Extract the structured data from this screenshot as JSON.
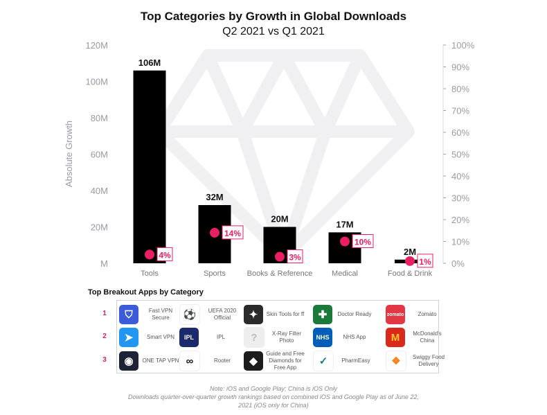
{
  "chart_data": {
    "type": "bar",
    "title": "Top Categories by Growth in Global Downloads",
    "subtitle": "Q2 2021 vs Q1 2021",
    "ylabel": "Absolute Growth",
    "categories": [
      "Tools",
      "Sports",
      "Books & Reference",
      "Medical",
      "Food & Drink"
    ],
    "values": [
      106,
      32,
      20,
      17,
      2
    ],
    "value_labels": [
      "106M",
      "32M",
      "20M",
      "17M",
      "2M"
    ],
    "ylim": [
      0,
      120
    ],
    "y_ticks": [
      "M",
      "20M",
      "40M",
      "60M",
      "80M",
      "100M",
      "120M"
    ],
    "secondary_series": {
      "values": [
        4,
        14,
        3,
        10,
        1
      ],
      "labels": [
        "4%",
        "14%",
        "3%",
        "10%",
        "1%"
      ],
      "ylim": [
        0,
        100
      ],
      "ticks": [
        "0%",
        "10%",
        "20%",
        "30%",
        "40%",
        "50%",
        "60%",
        "70%",
        "80%",
        "90%",
        "100%"
      ]
    },
    "colors": {
      "bar": "#000000",
      "dot": "#e91e63",
      "axis_text": "#9a9aa6",
      "grid": "#e6e6ea"
    },
    "grid": true
  },
  "breakout": {
    "title": "Top Breakout Apps by Category",
    "ranks": [
      "1",
      "2",
      "3"
    ],
    "rows": [
      [
        {
          "name": "Fast VPN Secure",
          "icon": "shield-icon",
          "color": "#3b5bdb",
          "glyph": "⛉"
        },
        {
          "name": "UEFA 2020 Official",
          "icon": "uefa-icon",
          "color": "#ffffff",
          "glyph": "⚽"
        },
        {
          "name": "Skin Tools for ff",
          "icon": "ff-icon",
          "color": "#2b2b2b",
          "glyph": "✦"
        },
        {
          "name": "Doctor Ready",
          "icon": "doctor-icon",
          "color": "#1b7a3a",
          "glyph": "✚"
        },
        {
          "name": "Zomato",
          "icon": "zomato-icon",
          "color": "#e23744",
          "glyph": "zomato"
        }
      ],
      [
        {
          "name": "Smart VPN",
          "icon": "paper-plane-icon",
          "color": "#2196f3",
          "glyph": "➤"
        },
        {
          "name": "IPL",
          "icon": "ipl-icon",
          "color": "#1a2a6c",
          "glyph": "IPL"
        },
        {
          "name": "X-Ray Filter Photo",
          "icon": "question-icon",
          "color": "#eeeeee",
          "glyph": "?"
        },
        {
          "name": "NHS App",
          "icon": "nhs-icon",
          "color": "#005eb8",
          "glyph": "NHS"
        },
        {
          "name": "McDonald's China",
          "icon": "mcdonalds-icon",
          "color": "#da291c",
          "glyph": "M"
        }
      ],
      [
        {
          "name": "ONE TAP VPN",
          "icon": "target-icon",
          "color": "#1e2235",
          "glyph": "◉"
        },
        {
          "name": "Rooter",
          "icon": "rooter-icon",
          "color": "#ffffff",
          "glyph": "∞"
        },
        {
          "name": "Guide and Free Diamonds for Free App",
          "icon": "diamond-icon",
          "color": "#1c1c1c",
          "glyph": "◆"
        },
        {
          "name": "PharmEasy",
          "icon": "pharmeasy-icon",
          "color": "#ffffff",
          "glyph": "✓"
        },
        {
          "name": "Swiggy Food Delivery",
          "icon": "swiggy-icon",
          "color": "#ffffff",
          "glyph": "❖"
        }
      ]
    ]
  },
  "notes": {
    "line1": "Note: iOS and Google Play; China is iOS Only",
    "line2": "Downloads quarter-over-quarter growth rankings based on combined iOS and Google Play as of June 22,",
    "line3": "2021 (iOS only for China)"
  }
}
